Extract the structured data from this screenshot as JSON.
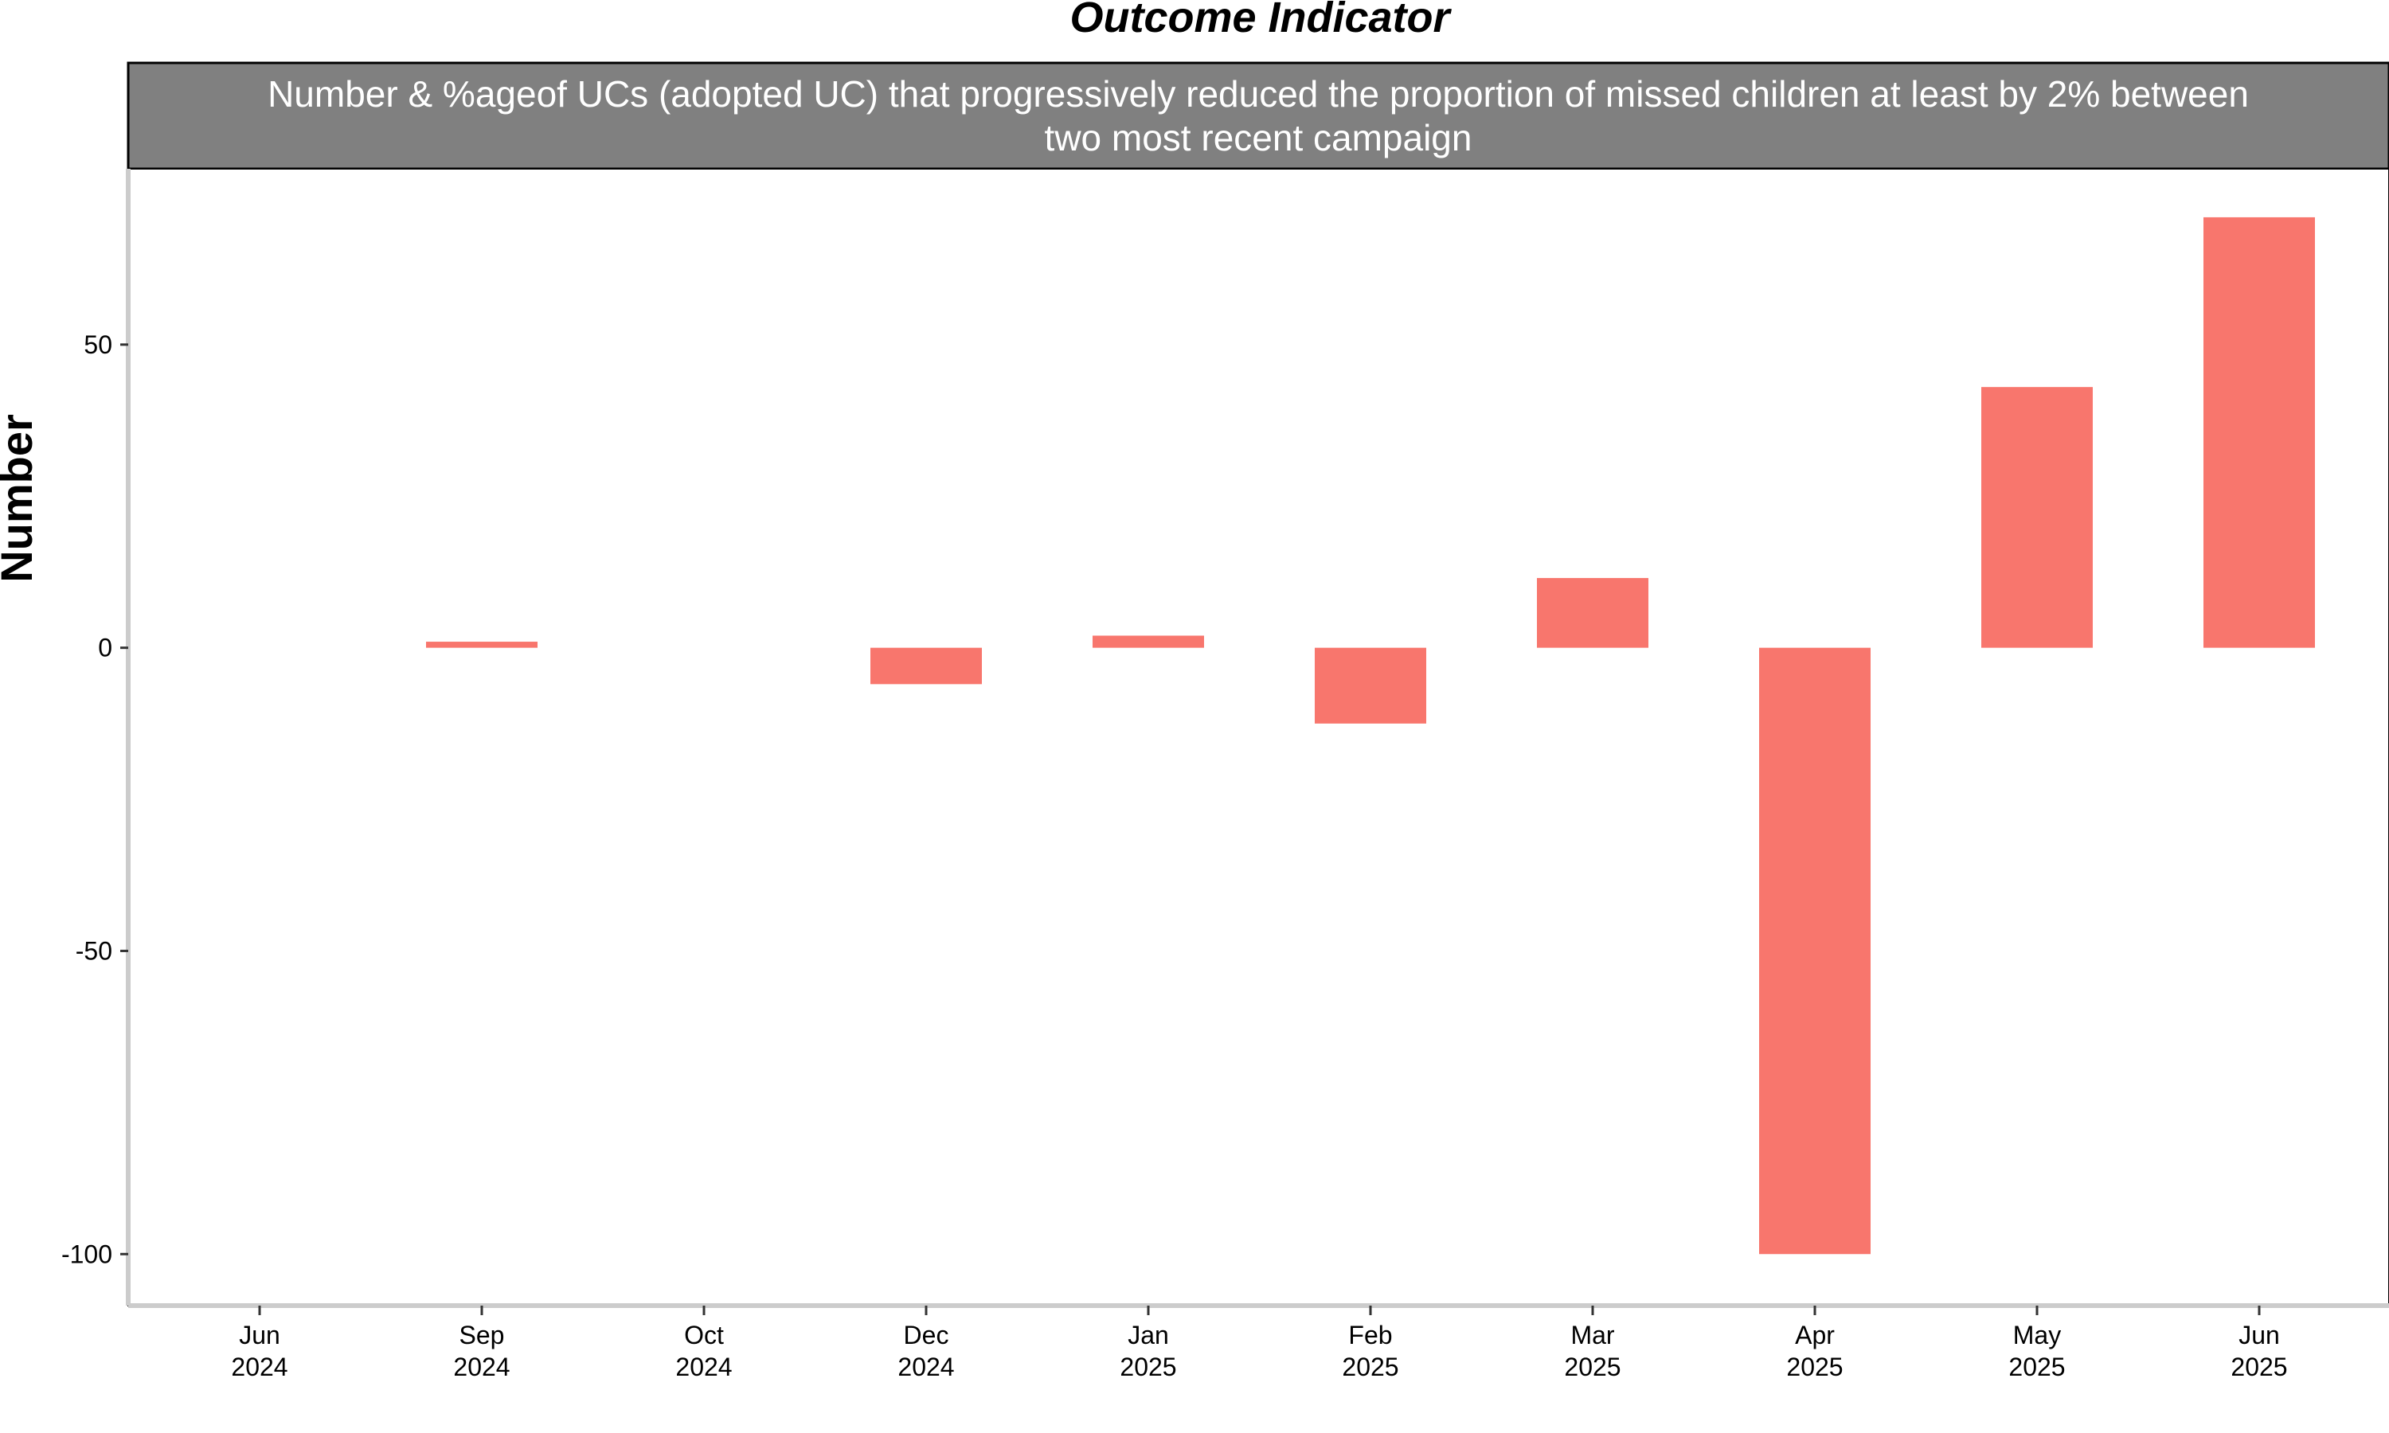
{
  "chart_data": {
    "type": "bar",
    "title": "Outcome Indicator",
    "panel_title_lines": [
      "Number & %ageof UCs (adopted UC) that progressively reduced the proportion of missed children at least by 2% between",
      "two most recent campaign"
    ],
    "xlabel": "",
    "ylabel": "Number",
    "categories": [
      [
        "Jun",
        "2024"
      ],
      [
        "Sep",
        "2024"
      ],
      [
        "Oct",
        "2024"
      ],
      [
        "Dec",
        "2024"
      ],
      [
        "Jan",
        "2025"
      ],
      [
        "Feb",
        "2025"
      ],
      [
        "Mar",
        "2025"
      ],
      [
        "Apr",
        "2025"
      ],
      [
        "May",
        "2025"
      ],
      [
        "Jun",
        "2025"
      ]
    ],
    "values": [
      0,
      1,
      0,
      -6,
      2,
      -12.5,
      11.5,
      -100,
      43,
      71
    ],
    "ylim": [
      -108.5,
      79
    ],
    "yticks": [
      -100,
      -50,
      0,
      50
    ],
    "grid": false,
    "legend": "none",
    "colors": {
      "bar": "#F8766D",
      "strip_background": "#808080",
      "strip_text": "#ffffff",
      "axis_line": "#cccccc"
    }
  }
}
